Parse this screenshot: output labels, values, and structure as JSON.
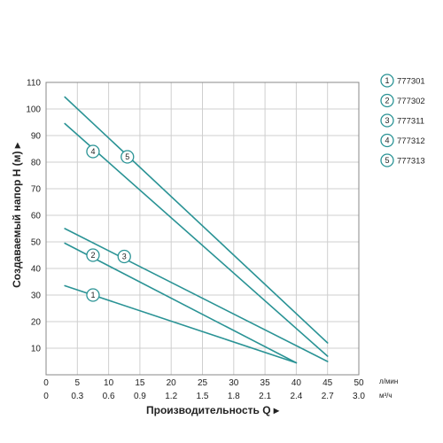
{
  "chart_data": {
    "type": "line",
    "ylabel": "Создаваемый напор H (м) ▸",
    "xlabel": "Производительность Q ▸",
    "x_unit_primary": "л/мин",
    "x_unit_secondary": "м³/ч",
    "xlim": [
      0,
      50
    ],
    "ylim": [
      0,
      110
    ],
    "grid": true,
    "legend_position": "right",
    "x_ticks_primary": [
      "0",
      "5",
      "10",
      "15",
      "20",
      "25",
      "30",
      "35",
      "40",
      "45",
      "50"
    ],
    "x_ticks_secondary": [
      "0",
      "0.3",
      "0.6",
      "0.9",
      "1.2",
      "1.5",
      "1.8",
      "2.1",
      "2.4",
      "2.7",
      "3.0"
    ],
    "y_ticks": [
      "10",
      "20",
      "30",
      "40",
      "50",
      "60",
      "70",
      "80",
      "90",
      "100",
      "110"
    ],
    "line_color": "#2a9395",
    "series": [
      {
        "name": "777301",
        "badge": "1",
        "x": [
          3,
          40
        ],
        "y": [
          33.5,
          4.5
        ],
        "label_at": [
          7.5,
          30
        ]
      },
      {
        "name": "777302",
        "badge": "2",
        "x": [
          3,
          40
        ],
        "y": [
          49.5,
          4.5
        ],
        "label_at": [
          7.5,
          45
        ]
      },
      {
        "name": "777311",
        "badge": "3",
        "x": [
          3,
          45
        ],
        "y": [
          55,
          5
        ],
        "label_at": [
          12.5,
          44.5
        ]
      },
      {
        "name": "777312",
        "badge": "4",
        "x": [
          3,
          45
        ],
        "y": [
          94.5,
          7
        ],
        "label_at": [
          7.5,
          84
        ]
      },
      {
        "name": "777313",
        "badge": "5",
        "x": [
          3,
          45
        ],
        "y": [
          104.5,
          12
        ],
        "label_at": [
          13,
          82
        ]
      }
    ]
  }
}
